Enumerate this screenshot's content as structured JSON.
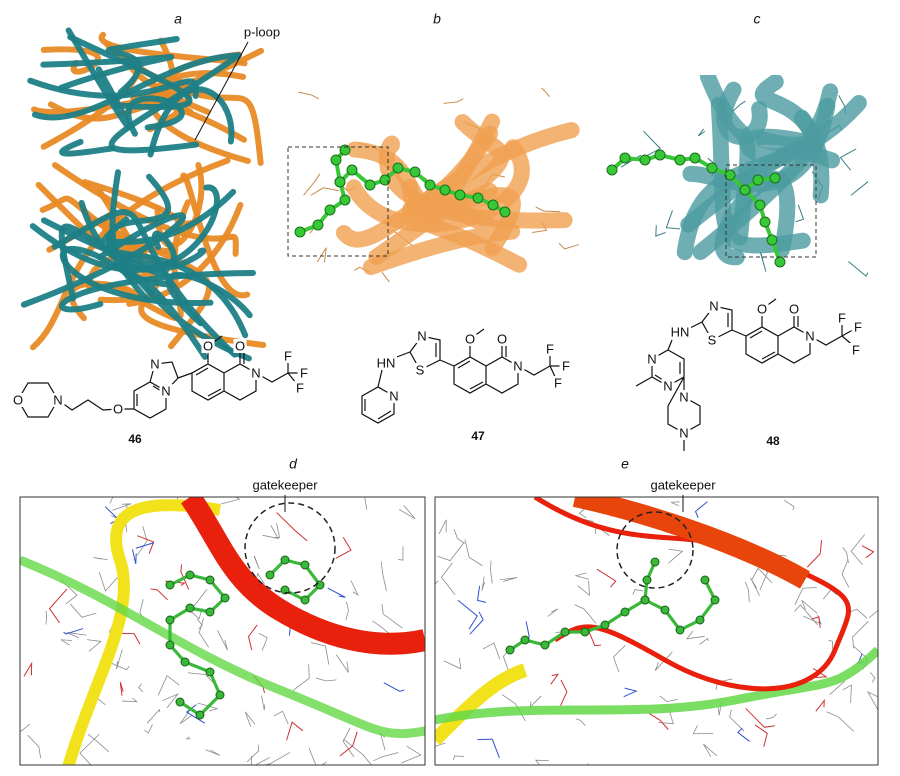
{
  "panels": {
    "a": {
      "label": "a",
      "annotation": "p-loop"
    },
    "b": {
      "label": "b"
    },
    "c": {
      "label": "c"
    },
    "d": {
      "label": "d",
      "annotation": "gatekeeper"
    },
    "e": {
      "label": "e",
      "annotation": "gatekeeper"
    }
  },
  "compounds": [
    {
      "number": "46",
      "atoms": [
        "O",
        "N",
        "O",
        "N",
        "N",
        "O",
        "O",
        "N",
        "F",
        "F",
        "F"
      ]
    },
    {
      "number": "47",
      "atoms": [
        "N",
        "HN",
        "N",
        "S",
        "O",
        "O",
        "N",
        "F",
        "F",
        "F"
      ]
    },
    {
      "number": "48",
      "atoms": [
        "N",
        "N",
        "HN",
        "N",
        "S",
        "O",
        "O",
        "N",
        "N",
        "N",
        "F",
        "F",
        "F"
      ]
    }
  ]
}
